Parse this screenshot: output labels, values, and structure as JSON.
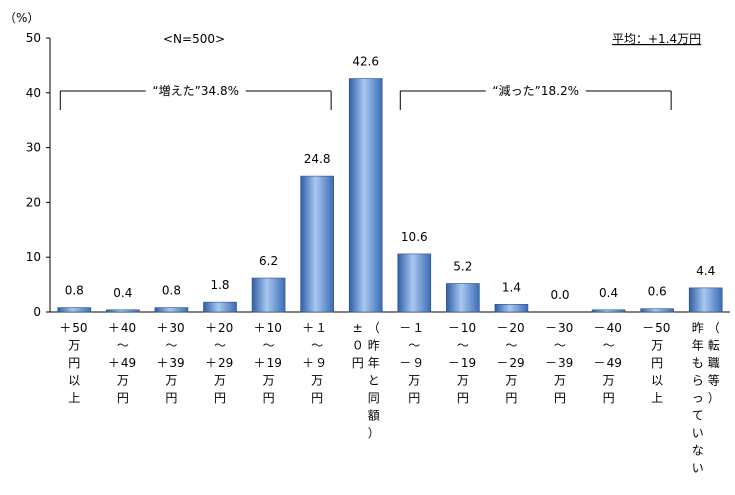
{
  "chart_data": {
    "type": "bar",
    "unit_label": "（%）",
    "sample_note": "<N=500>",
    "average_note": "平均：+1.4万円",
    "ylim": [
      0,
      50
    ],
    "y_ticks": [
      "0",
      "10",
      "20",
      "30",
      "40",
      "50"
    ],
    "categories": [
      "＋50万円以上",
      "＋40～＋49万円",
      "＋30～＋39万円",
      "＋20～＋29万円",
      "＋10～＋19万円",
      "＋１～＋９万円",
      "±０円（昨年と同額）",
      "－１～－９万円",
      "－10～－19万円",
      "－20～－29万円",
      "－30～－39万円",
      "－40～－49万円",
      "－50万円以上",
      "昨年もらっていない（転職等）"
    ],
    "values": [
      0.8,
      0.4,
      0.8,
      1.8,
      6.2,
      24.8,
      42.6,
      10.6,
      5.2,
      1.4,
      0.0,
      0.4,
      0.6,
      4.4
    ],
    "value_labels": [
      "0.8",
      "0.4",
      "0.8",
      "1.8",
      "6.2",
      "24.8",
      "42.6",
      "10.6",
      "5.2",
      "1.4",
      "0.0",
      "0.4",
      "0.6",
      "4.4"
    ],
    "category_lines": [
      [
        [
          "＋",
          "50"
        ],
        [
          "万"
        ],
        [
          "円"
        ],
        [
          "以"
        ],
        [
          "上"
        ]
      ],
      [
        [
          "＋",
          "40"
        ],
        [
          "～"
        ],
        [
          "＋",
          "49"
        ],
        [
          "万"
        ],
        [
          "円"
        ]
      ],
      [
        [
          "＋",
          "30"
        ],
        [
          "～"
        ],
        [
          "＋",
          "39"
        ],
        [
          "万"
        ],
        [
          "円"
        ]
      ],
      [
        [
          "＋",
          "20"
        ],
        [
          "～"
        ],
        [
          "＋",
          "29"
        ],
        [
          "万"
        ],
        [
          "円"
        ]
      ],
      [
        [
          "＋",
          "10"
        ],
        [
          "～"
        ],
        [
          "＋",
          "19"
        ],
        [
          "万"
        ],
        [
          "円"
        ]
      ],
      [
        [
          "＋",
          "１"
        ],
        [
          "～"
        ],
        [
          "＋",
          "９"
        ],
        [
          "万"
        ],
        [
          "円"
        ]
      ],
      [
        [
          "±"
        ],
        [
          "０"
        ],
        [
          "円"
        ]
      ],
      [
        [
          "－",
          "１"
        ],
        [
          "～"
        ],
        [
          "－",
          "９"
        ],
        [
          "万"
        ],
        [
          "円"
        ]
      ],
      [
        [
          "－",
          "10"
        ],
        [
          "～"
        ],
        [
          "－",
          "19"
        ],
        [
          "万"
        ],
        [
          "円"
        ]
      ],
      [
        [
          "－",
          "20"
        ],
        [
          "～"
        ],
        [
          "－",
          "29"
        ],
        [
          "万"
        ],
        [
          "円"
        ]
      ],
      [
        [
          "－",
          "30"
        ],
        [
          "～"
        ],
        [
          "－",
          "39"
        ],
        [
          "万"
        ],
        [
          "円"
        ]
      ],
      [
        [
          "－",
          "40"
        ],
        [
          "～"
        ],
        [
          "－",
          "49"
        ],
        [
          "万"
        ],
        [
          "円"
        ]
      ],
      [
        [
          "－",
          "50"
        ],
        [
          "万"
        ],
        [
          "円"
        ],
        [
          "以"
        ],
        [
          "上"
        ]
      ],
      [
        [
          "昨"
        ],
        [
          "年"
        ],
        [
          "も"
        ],
        [
          "ら"
        ],
        [
          "っ"
        ],
        [
          "て"
        ],
        [
          "い"
        ],
        [
          "な"
        ],
        [
          "い"
        ]
      ]
    ],
    "paren_lines": [
      null,
      null,
      null,
      null,
      null,
      null,
      [
        [
          "（"
        ],
        [
          "昨"
        ],
        [
          "年"
        ],
        [
          "と"
        ],
        [
          "同"
        ],
        [
          "額"
        ],
        [
          "）"
        ]
      ],
      null,
      null,
      null,
      null,
      null,
      null,
      [
        [
          "（"
        ],
        [
          "転"
        ],
        [
          "職"
        ],
        [
          "等"
        ],
        [
          "）"
        ]
      ]
    ],
    "groups": [
      {
        "label": "“増えた”34.8%",
        "from": 0,
        "to": 5
      },
      {
        "label": "“減った”18.2%",
        "from": 7,
        "to": 12
      }
    ],
    "bar_color": "#5b8fd6"
  }
}
